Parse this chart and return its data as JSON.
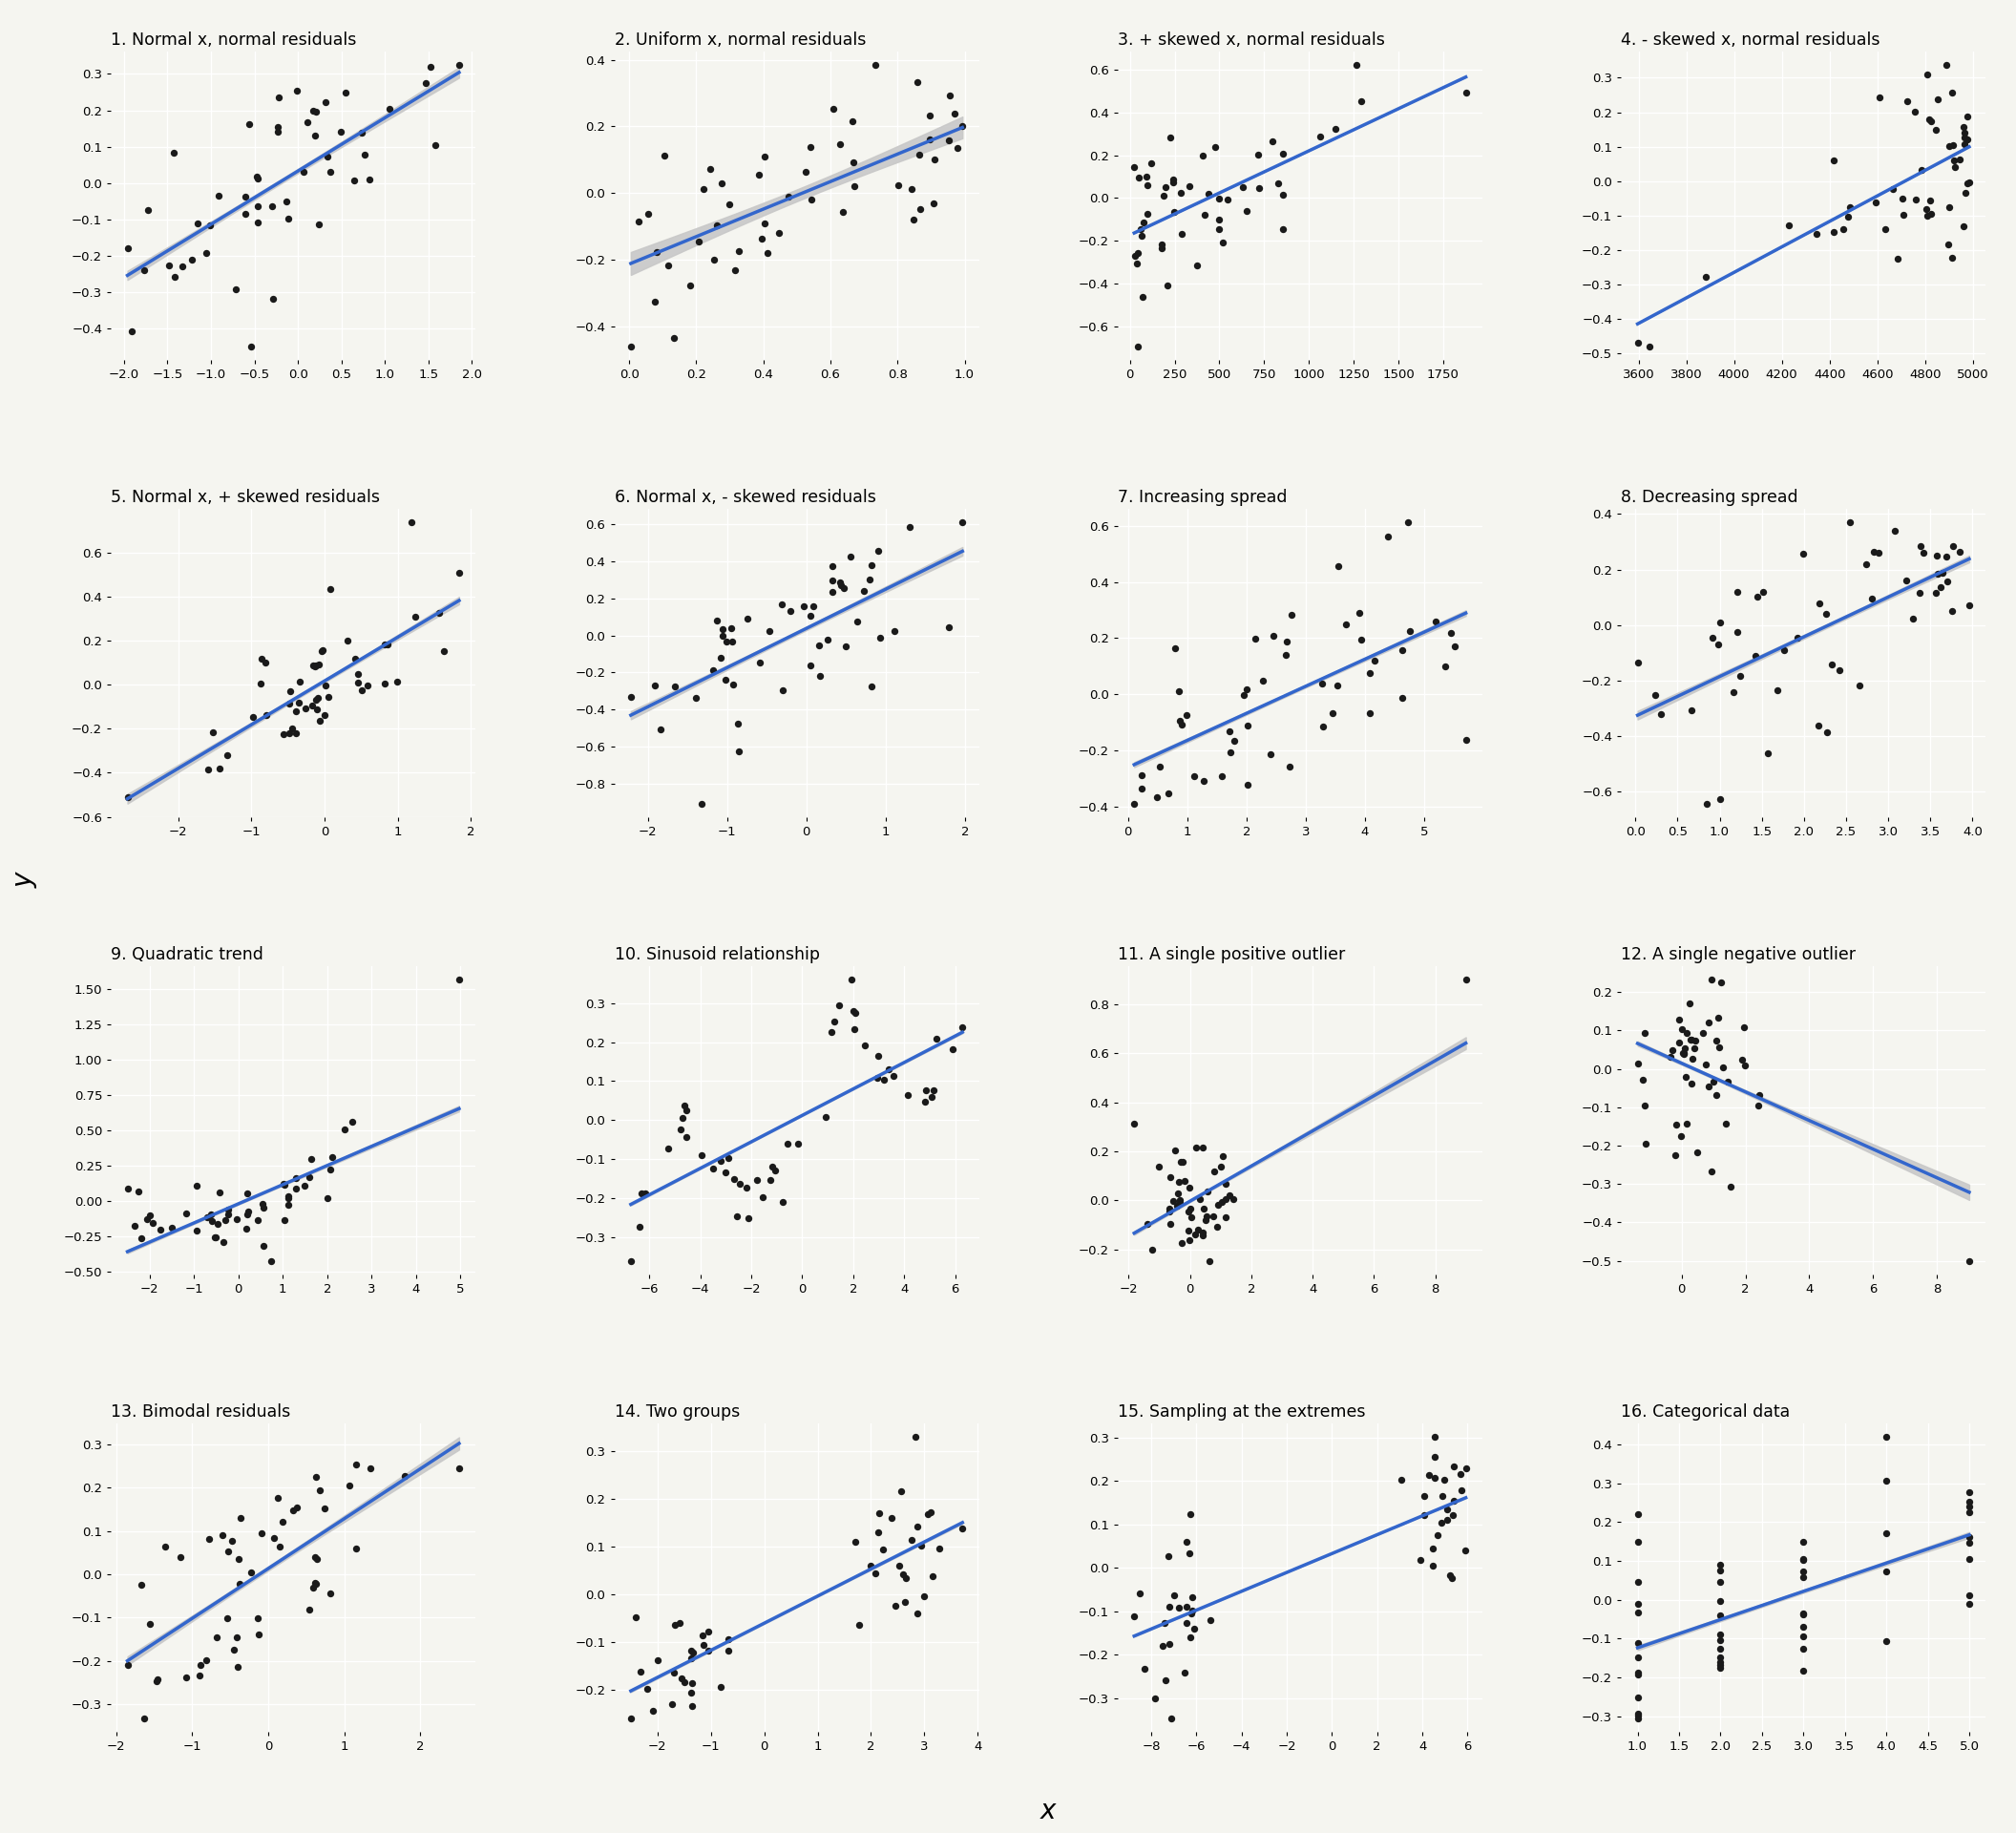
{
  "titles": [
    "1. Normal x, normal residuals",
    "2. Uniform x, normal residuals",
    "3. + skewed x, normal residuals",
    "4. - skewed x, normal residuals",
    "5. Normal x, + skewed residuals",
    "6. Normal x, - skewed residuals",
    "7. Increasing spread",
    "8. Decreasing spread",
    "9. Quadratic trend",
    "10. Sinusoid relationship",
    "11. A single positive outlier",
    "12. A single negative outlier",
    "13. Bimodal residuals",
    "14. Two groups",
    "15. Sampling at the extremes",
    "16. Categorical data"
  ],
  "nrow": 4,
  "ncol": 4,
  "dot_color": "#1a1a1a",
  "line_color": "#3366cc",
  "band_color": "#c8c8c8",
  "bg_color": "#f5f5f0",
  "grid_color": "#ffffff",
  "xlabel": "x",
  "ylabel": "y",
  "target_r": 0.67,
  "n": 50
}
